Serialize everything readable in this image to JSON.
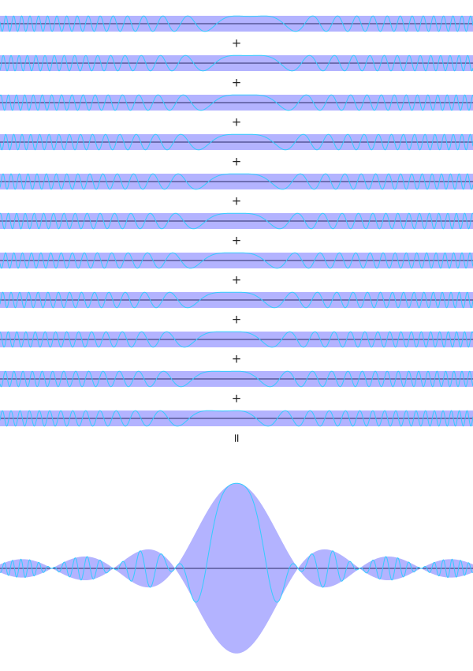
{
  "operators": [
    "+",
    "+",
    "+",
    "+",
    "+",
    "+",
    "+",
    "+",
    "+",
    "+",
    "="
  ]
}
